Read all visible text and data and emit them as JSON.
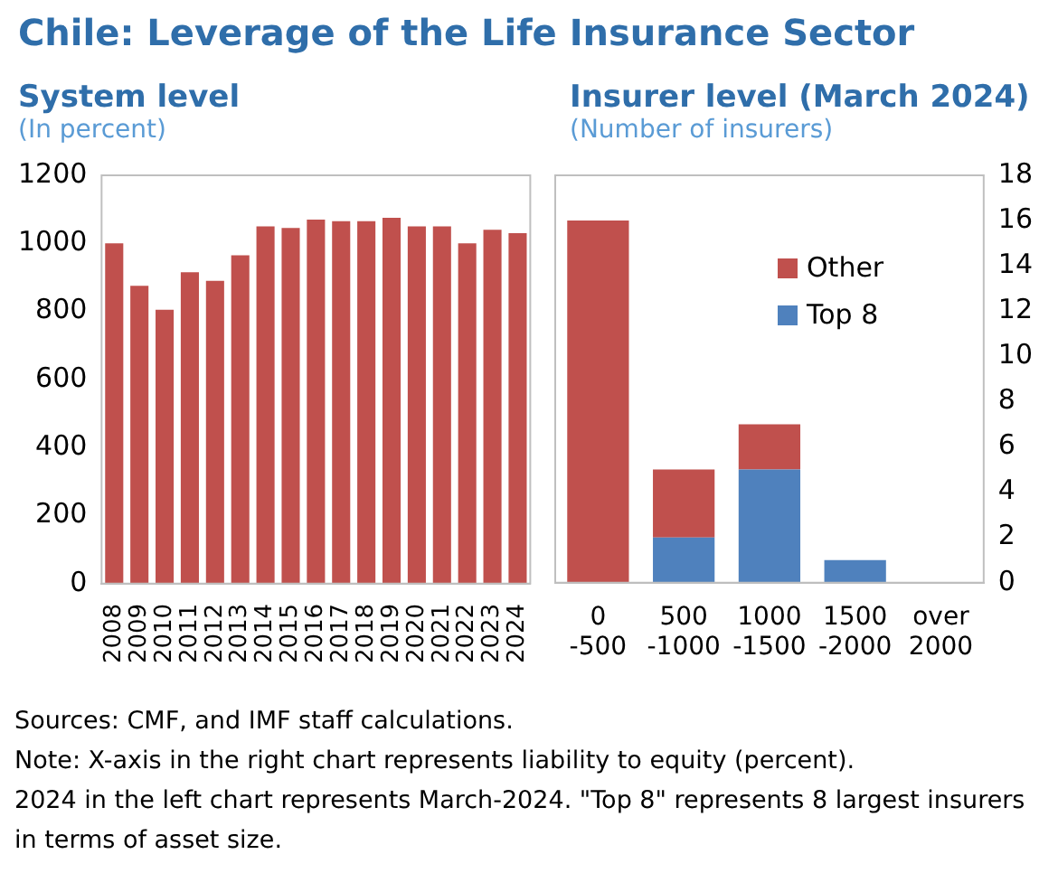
{
  "chart_data": [
    {
      "type": "bar",
      "title": "System level",
      "subtitle": "(In percent)",
      "annotations": [
        "Chile: Leverage of the Life Insurance Sector"
      ],
      "categories": [
        "2008",
        "2009",
        "2010",
        "2011",
        "2012",
        "2013",
        "2014",
        "2015",
        "2016",
        "2017",
        "2018",
        "2019",
        "2020",
        "2021",
        "2022",
        "2023",
        "2024"
      ],
      "values": [
        1000,
        875,
        805,
        915,
        890,
        965,
        1050,
        1045,
        1070,
        1065,
        1065,
        1075,
        1050,
        1050,
        1000,
        1040,
        1030
      ],
      "color": "#c0504d",
      "ylim": [
        0,
        1200
      ],
      "yticks": [
        0,
        200,
        400,
        600,
        800,
        1000,
        1200
      ],
      "grid": false
    },
    {
      "type": "bar",
      "title": "Insurer level (March 2024)",
      "subtitle": "(Number of insurers)",
      "stacked": true,
      "legend": "top right",
      "categories": [
        "0\n-500",
        "500\n-1000",
        "1000\n-1500",
        "1500\n-2000",
        "over\n2000"
      ],
      "series": [
        {
          "name": "Top 8",
          "color": "#4f81bd",
          "values": [
            0,
            2,
            5,
            1,
            0
          ]
        },
        {
          "name": "Other",
          "color": "#c0504d",
          "values": [
            16,
            3,
            2,
            0,
            0
          ]
        }
      ],
      "ylim": [
        0,
        18
      ],
      "yticks": [
        0,
        2,
        4,
        6,
        8,
        10,
        12,
        14,
        16,
        18
      ],
      "grid": false,
      "annotations": [
        "Sources: CMF, and IMF staff calculations.",
        "Note: X-axis in the right chart represents liability to equity (percent).",
        "2024 in the left chart represents March-2024.  \"Top 8\" represents 8 largest insurers in terms of asset size."
      ]
    }
  ]
}
